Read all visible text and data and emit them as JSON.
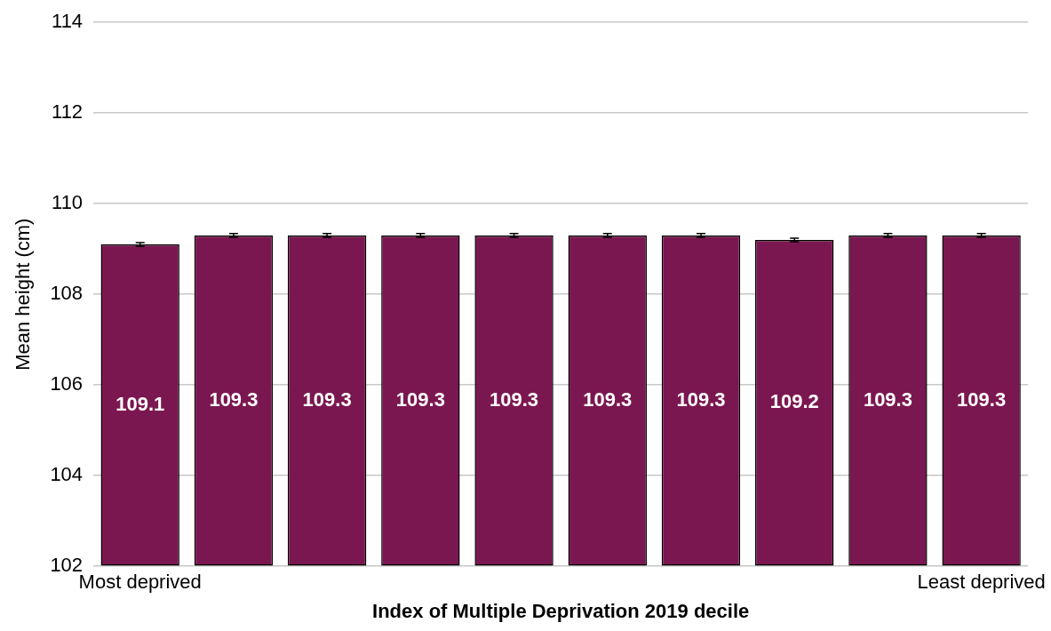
{
  "chart_data": {
    "type": "bar",
    "xlabel": "Index of Multiple Deprivation 2019 decile",
    "ylabel": "Mean height (cm)",
    "categories": [
      "Most deprived",
      null,
      null,
      null,
      null,
      null,
      null,
      null,
      null,
      "Least deprived"
    ],
    "values": [
      109.1,
      109.3,
      109.3,
      109.3,
      109.3,
      109.3,
      109.3,
      109.2,
      109.3,
      109.3
    ],
    "errors": [
      0.04,
      0.04,
      0.04,
      0.04,
      0.04,
      0.04,
      0.04,
      0.04,
      0.04,
      0.04
    ],
    "color": "#7b1750",
    "ylim": [
      102,
      114
    ],
    "yticks": [
      102,
      104,
      106,
      108,
      110,
      112,
      114
    ],
    "grid": "y",
    "data_labels": true
  }
}
